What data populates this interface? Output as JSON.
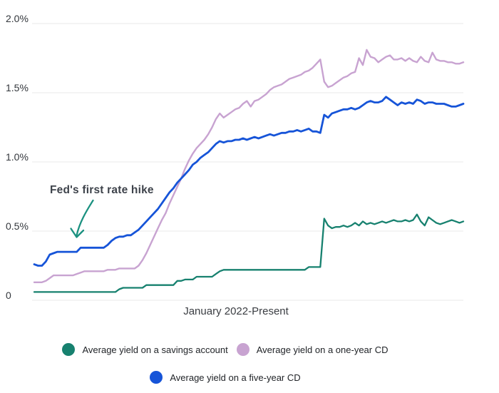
{
  "page": {
    "background": "#ffffff"
  },
  "chart_data": {
    "type": "line",
    "title": "",
    "x_label": "January 2022-Present",
    "x_description": "Weekly observations from January 2022 to present",
    "y_unit": "percent",
    "y_range": [
      0,
      2
    ],
    "grid": "horizontal",
    "legend_position": "bottom",
    "y_ticks": [
      {
        "label": "2.0%",
        "value": 2.0
      },
      {
        "label": "1.5%",
        "value": 1.5
      },
      {
        "label": "1.0%",
        "value": 1.0
      },
      {
        "label": "0.5%",
        "value": 0.5
      },
      {
        "label": "0",
        "value": 0.0
      }
    ],
    "annotation": {
      "text": "Fed's first rate hike",
      "arrow_color": "#1B9180",
      "points_to": "five-year CD line, March 2022"
    },
    "series": [
      {
        "name": "Average yield on a savings account",
        "color": "#17816F",
        "values": [
          0.06,
          0.06,
          0.06,
          0.06,
          0.06,
          0.06,
          0.06,
          0.06,
          0.06,
          0.06,
          0.06,
          0.06,
          0.06,
          0.06,
          0.06,
          0.06,
          0.06,
          0.06,
          0.06,
          0.06,
          0.06,
          0.06,
          0.08,
          0.09,
          0.09,
          0.09,
          0.09,
          0.09,
          0.09,
          0.11,
          0.11,
          0.11,
          0.11,
          0.11,
          0.11,
          0.11,
          0.11,
          0.14,
          0.14,
          0.15,
          0.15,
          0.15,
          0.17,
          0.17,
          0.17,
          0.17,
          0.17,
          0.19,
          0.21,
          0.22,
          0.22,
          0.22,
          0.22,
          0.22,
          0.22,
          0.22,
          0.22,
          0.22,
          0.22,
          0.22,
          0.22,
          0.22,
          0.22,
          0.22,
          0.22,
          0.22,
          0.22,
          0.22,
          0.22,
          0.22,
          0.22,
          0.24,
          0.24,
          0.24,
          0.24,
          0.59,
          0.54,
          0.52,
          0.53,
          0.53,
          0.54,
          0.53,
          0.54,
          0.56,
          0.54,
          0.57,
          0.55,
          0.56,
          0.55,
          0.56,
          0.57,
          0.56,
          0.57,
          0.58,
          0.57,
          0.57,
          0.58,
          0.57,
          0.58,
          0.62,
          0.57,
          0.54,
          0.6,
          0.58,
          0.56,
          0.55,
          0.56,
          0.57,
          0.58,
          0.57,
          0.56,
          0.57
        ]
      },
      {
        "name": "Average yield on a one-year CD",
        "color": "#C8A3D1",
        "values": [
          0.13,
          0.13,
          0.13,
          0.14,
          0.16,
          0.18,
          0.18,
          0.18,
          0.18,
          0.18,
          0.18,
          0.19,
          0.2,
          0.21,
          0.21,
          0.21,
          0.21,
          0.21,
          0.21,
          0.22,
          0.22,
          0.22,
          0.23,
          0.23,
          0.23,
          0.23,
          0.23,
          0.25,
          0.29,
          0.34,
          0.4,
          0.46,
          0.52,
          0.58,
          0.63,
          0.7,
          0.76,
          0.82,
          0.88,
          0.95,
          1.01,
          1.06,
          1.1,
          1.13,
          1.16,
          1.2,
          1.25,
          1.31,
          1.35,
          1.32,
          1.34,
          1.36,
          1.38,
          1.39,
          1.42,
          1.44,
          1.4,
          1.44,
          1.45,
          1.47,
          1.49,
          1.52,
          1.54,
          1.55,
          1.56,
          1.58,
          1.6,
          1.61,
          1.62,
          1.63,
          1.65,
          1.66,
          1.68,
          1.71,
          1.74,
          1.58,
          1.54,
          1.55,
          1.57,
          1.59,
          1.61,
          1.62,
          1.64,
          1.65,
          1.75,
          1.7,
          1.81,
          1.76,
          1.75,
          1.72,
          1.74,
          1.76,
          1.77,
          1.74,
          1.74,
          1.75,
          1.73,
          1.75,
          1.73,
          1.72,
          1.76,
          1.73,
          1.72,
          1.79,
          1.74,
          1.73,
          1.73,
          1.72,
          1.72,
          1.71,
          1.71,
          1.72
        ]
      },
      {
        "name": "Average yield on a five-year CD",
        "color": "#1654D8",
        "values": [
          0.26,
          0.25,
          0.25,
          0.28,
          0.33,
          0.34,
          0.35,
          0.35,
          0.35,
          0.35,
          0.35,
          0.35,
          0.38,
          0.38,
          0.38,
          0.38,
          0.38,
          0.38,
          0.38,
          0.4,
          0.43,
          0.45,
          0.46,
          0.46,
          0.47,
          0.47,
          0.49,
          0.51,
          0.54,
          0.57,
          0.6,
          0.63,
          0.66,
          0.7,
          0.74,
          0.78,
          0.81,
          0.85,
          0.88,
          0.91,
          0.94,
          0.98,
          1.0,
          1.03,
          1.05,
          1.07,
          1.1,
          1.13,
          1.15,
          1.14,
          1.15,
          1.15,
          1.16,
          1.16,
          1.17,
          1.16,
          1.17,
          1.18,
          1.17,
          1.18,
          1.19,
          1.2,
          1.19,
          1.2,
          1.21,
          1.21,
          1.22,
          1.22,
          1.23,
          1.22,
          1.23,
          1.24,
          1.22,
          1.22,
          1.21,
          1.34,
          1.32,
          1.35,
          1.36,
          1.37,
          1.38,
          1.38,
          1.39,
          1.38,
          1.39,
          1.41,
          1.43,
          1.44,
          1.43,
          1.43,
          1.44,
          1.47,
          1.45,
          1.43,
          1.41,
          1.43,
          1.42,
          1.43,
          1.42,
          1.45,
          1.44,
          1.42,
          1.43,
          1.43,
          1.42,
          1.42,
          1.42,
          1.41,
          1.4,
          1.4,
          1.41,
          1.42
        ]
      }
    ],
    "grid_color": "#EDEDED"
  }
}
